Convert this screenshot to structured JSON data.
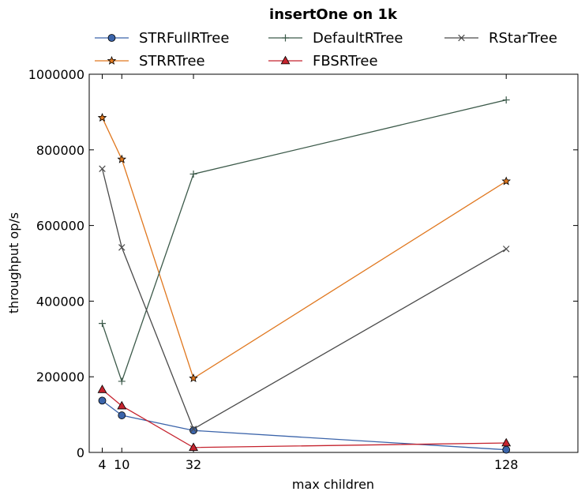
{
  "chart_data": {
    "type": "line",
    "title": "insertOne on 1k",
    "xlabel": "max children",
    "ylabel": "throughput op/s",
    "xlim": [
      0,
      150
    ],
    "ylim": [
      0,
      1000000
    ],
    "x": [
      4,
      10,
      32,
      128
    ],
    "xticks": [
      4,
      10,
      32,
      128
    ],
    "xtick_labels": [
      "4",
      "10",
      "32",
      "128"
    ],
    "yticks": [
      0,
      200000,
      400000,
      600000,
      800000,
      1000000
    ],
    "ytick_labels": [
      "0",
      "200000",
      "400000",
      "600000",
      "800000",
      "1000000"
    ],
    "grid": false,
    "legend_position": "top, above plot, 3 columns",
    "series": [
      {
        "name": "STRFullRTree",
        "values": [
          137000,
          98000,
          58000,
          7000
        ],
        "color": "#3b64aa",
        "marker": "circle"
      },
      {
        "name": "STRRTree",
        "values": [
          885000,
          775000,
          196000,
          717000
        ],
        "color": "#e0771e",
        "marker": "star"
      },
      {
        "name": "DefaultRTree",
        "values": [
          341000,
          188000,
          736000,
          932000
        ],
        "color": "#3c5a4a",
        "marker": "plus"
      },
      {
        "name": "FBSRTree",
        "values": [
          166000,
          123000,
          13000,
          25000
        ],
        "color": "#c5232e",
        "marker": "triangle"
      },
      {
        "name": "RStarTree",
        "values": [
          750000,
          542000,
          62000,
          538000
        ],
        "color": "#4a4a4a",
        "marker": "x"
      }
    ]
  }
}
